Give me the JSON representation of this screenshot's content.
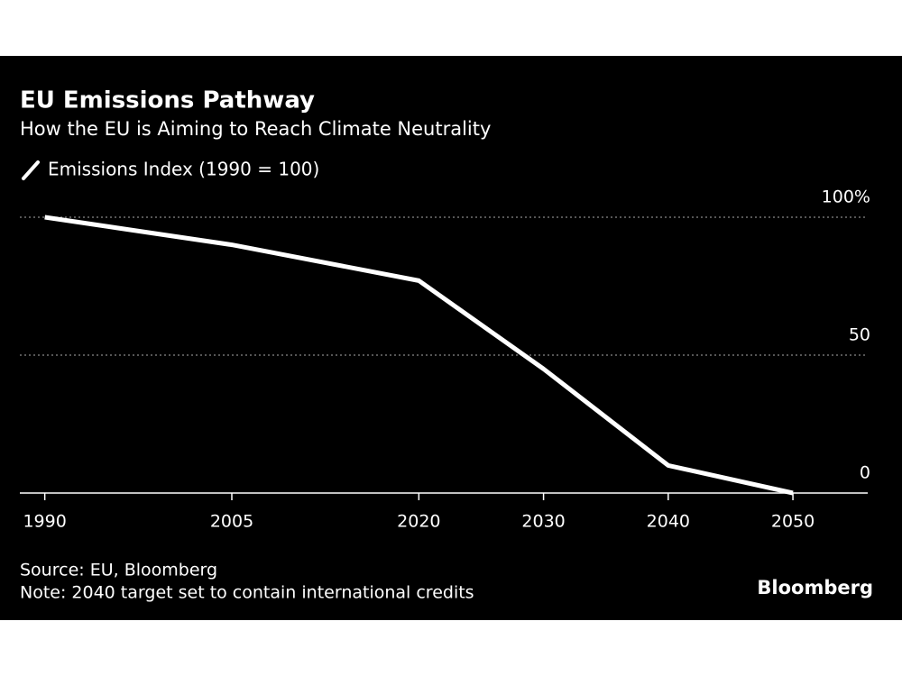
{
  "chart_data": {
    "type": "line",
    "title": "EU Emissions Pathway",
    "subtitle": "How the EU is Aiming to Reach Climate Neutrality",
    "x": [
      1990,
      2005,
      2020,
      2030,
      2040,
      2050
    ],
    "series": [
      {
        "name": "Emissions Index (1990 = 100)",
        "color": "#ffffff",
        "values": [
          100,
          90,
          77,
          45,
          10,
          0
        ]
      }
    ],
    "xlim": [
      1988,
      2056
    ],
    "xticks": [
      1990,
      2005,
      2020,
      2030,
      2040,
      2050
    ],
    "ylim": [
      0,
      100
    ],
    "yticks": [
      0,
      50,
      {
        "value": 100,
        "label": "100%"
      }
    ],
    "grid": true,
    "source": "Source: EU, Bloomberg",
    "note": "Note: 2040 target set to contain international credits",
    "brand": "Bloomberg"
  }
}
